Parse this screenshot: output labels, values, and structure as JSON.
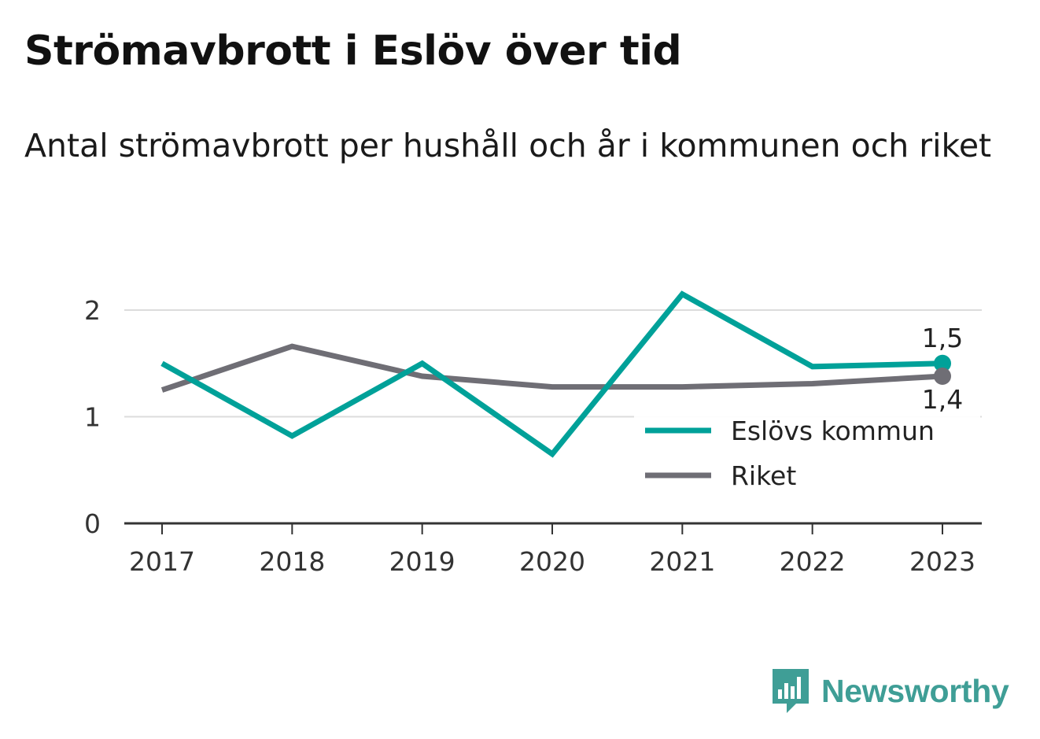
{
  "title": "Strömavbrott i Eslöv över tid",
  "subtitle": "Antal strömavbrott per hushåll och år i kommunen och riket",
  "brand": {
    "name": "Newsworthy",
    "icon": "bar-chart-speech-bubble-icon",
    "color": "#3f9e96"
  },
  "chart_data": {
    "type": "line",
    "x": [
      "2017",
      "2018",
      "2019",
      "2020",
      "2021",
      "2022",
      "2023"
    ],
    "ylim": [
      0,
      2.2
    ],
    "yticks": [
      0,
      1,
      2
    ],
    "grid": true,
    "legend_position": "bottom-right",
    "series": [
      {
        "name": "Eslövs kommun",
        "color": "#00a199",
        "values": [
          1.5,
          0.82,
          1.5,
          0.65,
          2.15,
          1.47,
          1.5
        ],
        "end_label": "1,5"
      },
      {
        "name": "Riket",
        "color": "#6f6e75",
        "values": [
          1.25,
          1.66,
          1.38,
          1.28,
          1.28,
          1.31,
          1.38
        ],
        "end_label": "1,4"
      }
    ]
  }
}
